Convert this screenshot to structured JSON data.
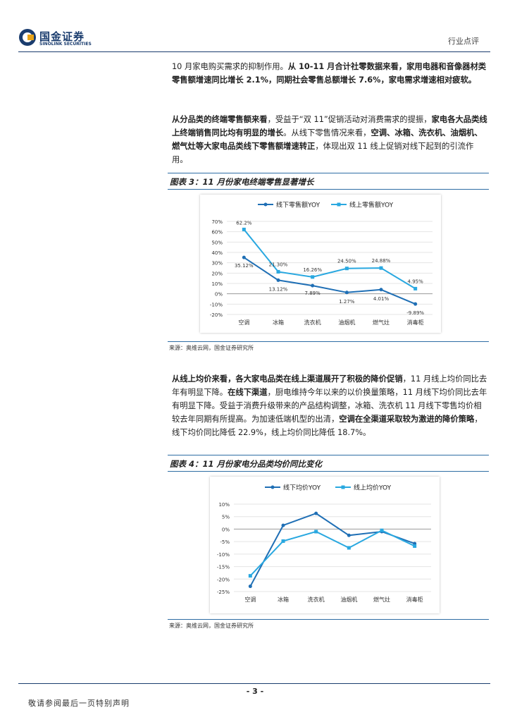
{
  "header": {
    "logo_cn": "国金证券",
    "logo_en": "SINOLINK SECURITIES",
    "category": "行业点评"
  },
  "paragraph1": {
    "t1": "10 月家电购买需求的抑制作用。",
    "b1": "从 10-11 月合计社零数据来看，家用电器和音像器材类零售额增速同比增长 2.1%，同期社会零售总额增长 7.6%，家电需求增速相对疲软。"
  },
  "paragraph2": {
    "b1": "从分品类的终端零售额来看",
    "t1": "，受益于“双 11”促销活动对消费需求的提振，",
    "b2": "家电各大品类线上终端销售同比均有明显的增长",
    "t2": "。从线下零售情况来看，",
    "b3": "空调、冰箱、洗衣机、油烟机、燃气灶等大家电品类线下零售额增速转正",
    "t3": "，体现出双 11 线上促销对线下起到的引流作用。"
  },
  "figure3": {
    "title": "图表 3：11 月份家电终端零售显著增长",
    "source": "来源：奥维云网，国金证券研究所"
  },
  "paragraph3": {
    "b1": "从线上均价来看，各大家电品类在线上渠道展开了积极的降价促销",
    "t1": "，11 月线上均价同比去年有明显下降。",
    "b2": "在线下渠道",
    "t2": "，厨电维持今年以来的以价换量策略，11 月线下均价同比去年有明显下降。受益于消费升级带来的产品结构调整，冰箱、洗衣机 11 月线下零售均价相较去年同期有所提高。为加速低端机型的出清，",
    "b3": "空调在全渠道采取较为激进的降价策略",
    "t3": "，线下均价同比降低 22.9%，线上均价同比降低 18.7%。"
  },
  "figure4": {
    "title": "图表 4：11 月份家电分品类均价同比变化",
    "source": "来源：奥维云网，国金证券研究所"
  },
  "footer": {
    "page": "- 3 -",
    "note": "敬请参阅最后一页特别声明"
  },
  "colors": {
    "dark_series": "#1f6fb5",
    "light_series": "#29a8e0",
    "rule": "#2e6da4"
  },
  "chart_data": [
    {
      "type": "line",
      "categories": [
        "空调",
        "冰箱",
        "洗衣机",
        "油烟机",
        "燃气灶",
        "消毒柜"
      ],
      "series": [
        {
          "name": "线下零售额YOY",
          "values": [
            35.12,
            13.12,
            7.89,
            1.27,
            4.01,
            -9.89
          ],
          "labels": [
            "35.12%",
            "13.12%",
            "7.89%",
            "1.27%",
            "4.01%",
            "-9.89%"
          ]
        },
        {
          "name": "线上零售额YOY",
          "values": [
            62.2,
            21.3,
            16.26,
            24.5,
            24.88,
            4.95
          ],
          "labels": [
            "62.2%",
            "21.30%",
            "16.26%",
            "24.50%",
            "24.88%",
            "4.95%"
          ]
        }
      ],
      "ylim": [
        -20,
        70
      ],
      "yticks": [
        -20,
        -10,
        0,
        10,
        20,
        30,
        40,
        50,
        60,
        70
      ],
      "ytick_labels": [
        "-20%",
        "-10%",
        "0%",
        "10%",
        "20%",
        "30%",
        "40%",
        "50%",
        "60%",
        "70%"
      ],
      "legend": "top"
    },
    {
      "type": "line",
      "categories": [
        "空调",
        "冰箱",
        "洗衣机",
        "油烟机",
        "燃气灶",
        "消毒柜"
      ],
      "series": [
        {
          "name": "线下均价YOY",
          "values": [
            -22.9,
            1.5,
            6.3,
            -2.5,
            -1.0,
            -5.8
          ]
        },
        {
          "name": "线上均价YOY",
          "values": [
            -18.7,
            -4.8,
            -1.0,
            -7.5,
            -0.5,
            -6.8
          ]
        }
      ],
      "ylim": [
        -25,
        10
      ],
      "yticks": [
        -25,
        -20,
        -15,
        -10,
        -5,
        0,
        5,
        10
      ],
      "ytick_labels": [
        "-25%",
        "-20%",
        "-15%",
        "-10%",
        "-5%",
        "0%",
        "5%",
        "10%"
      ],
      "legend": "top"
    }
  ]
}
